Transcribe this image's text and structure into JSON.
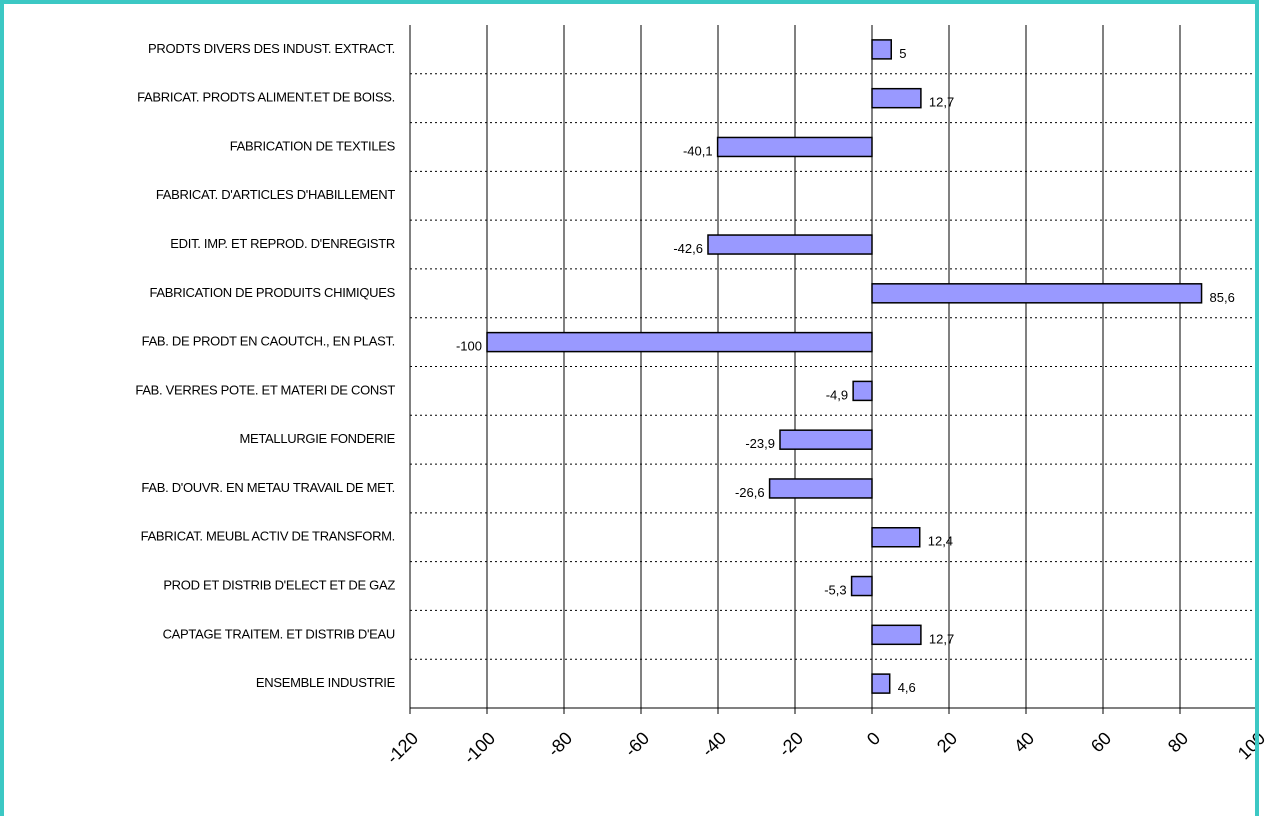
{
  "chart_data": {
    "type": "bar",
    "orientation": "horizontal",
    "categories": [
      "PRODTS DIVERS DES INDUST. EXTRACT.",
      "FABRICAT. PRODTS ALIMENT.ET DE BOISS.",
      "FABRICATION DE TEXTILES",
      "FABRICAT. D'ARTICLES D'HABILLEMENT",
      "EDIT. IMP. ET REPROD. D'ENREGISTR",
      "FABRICATION DE PRODUITS CHIMIQUES",
      "FAB. DE PRODT EN CAOUTCH., EN PLAST.",
      "FAB. VERRES POTE. ET MATERI DE CONST",
      "METALLURGIE FONDERIE",
      "FAB. D'OUVR. EN METAU TRAVAIL DE MET.",
      "FABRICAT. MEUBL ACTIV DE TRANSFORM.",
      "PROD ET DISTRIB D'ELECT ET DE GAZ",
      "CAPTAGE TRAITEM. ET DISTRIB D'EAU",
      "ENSEMBLE INDUSTRIE"
    ],
    "values": [
      5,
      12.7,
      -40.1,
      null,
      -42.6,
      85.6,
      -100,
      -4.9,
      -23.9,
      -26.6,
      12.4,
      -5.3,
      12.7,
      4.6
    ],
    "value_labels": [
      "5",
      "12,7",
      "-40,1",
      null,
      "-42,6",
      "85,6",
      "-100",
      "-4,9",
      "-23,9",
      "-26,6",
      "12,4",
      "-5,3",
      "12,7",
      "4,6"
    ],
    "color": "#9999ff",
    "xlim": [
      -120,
      100
    ],
    "xticks": [
      -120,
      -100,
      -80,
      -60,
      -40,
      -20,
      0,
      20,
      40,
      60,
      80,
      100
    ],
    "grid": true
  }
}
